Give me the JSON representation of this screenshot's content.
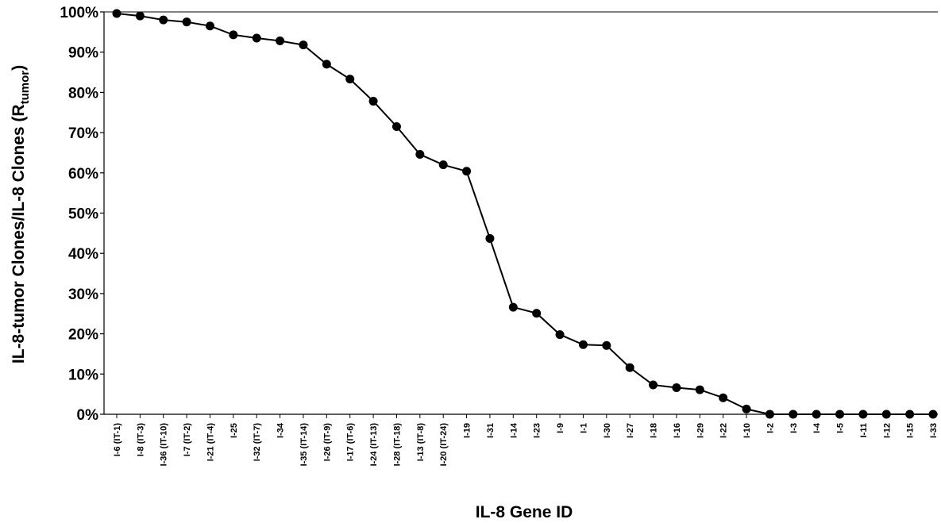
{
  "chart_data": {
    "type": "line",
    "xlabel": "IL-8 Gene ID",
    "ylabel": "IL-8-tumor Clones/IL-8 Clones (R",
    "ylabel_subscript": "tumor",
    "ylabel_suffix": ")",
    "ylim": [
      0,
      100
    ],
    "yticks": [
      "0%",
      "10%",
      "20%",
      "30%",
      "40%",
      "50%",
      "60%",
      "70%",
      "80%",
      "90%",
      "100%"
    ],
    "grid": false,
    "categories": [
      "I-6 (IT-1)",
      "I-8 (IT-3)",
      "I-36 (IT-10)",
      "I-7 (IT-2)",
      "I-21 (IT-4)",
      "I-25",
      "I-32 (IT-7)",
      "I-34",
      "I-35 (IT-14)",
      "I-26 (IT-9)",
      "I-17 (IT-6)",
      "I-24 (IT-13)",
      "I-28 (IT-18)",
      "I-13 (IT-8)",
      "I-20 (IT-24)",
      "I-19",
      "I-31",
      "I-14",
      "I-23",
      "I-9",
      "I-1",
      "I-30",
      "I-27",
      "I-18",
      "I-16",
      "I-29",
      "I-22",
      "I-10",
      "I-2",
      "I-3",
      "I-4",
      "I-5",
      "I-11",
      "I-12",
      "I-15",
      "I-33"
    ],
    "values": [
      99.6,
      99.0,
      98.0,
      97.5,
      96.5,
      94.3,
      93.5,
      92.8,
      91.8,
      87.0,
      83.3,
      77.8,
      71.5,
      64.6,
      62.0,
      60.4,
      43.7,
      26.6,
      25.1,
      19.8,
      17.3,
      17.1,
      11.6,
      7.3,
      6.6,
      6.1,
      4.1,
      1.3,
      0,
      0,
      0,
      0,
      0,
      0,
      0,
      0
    ]
  }
}
